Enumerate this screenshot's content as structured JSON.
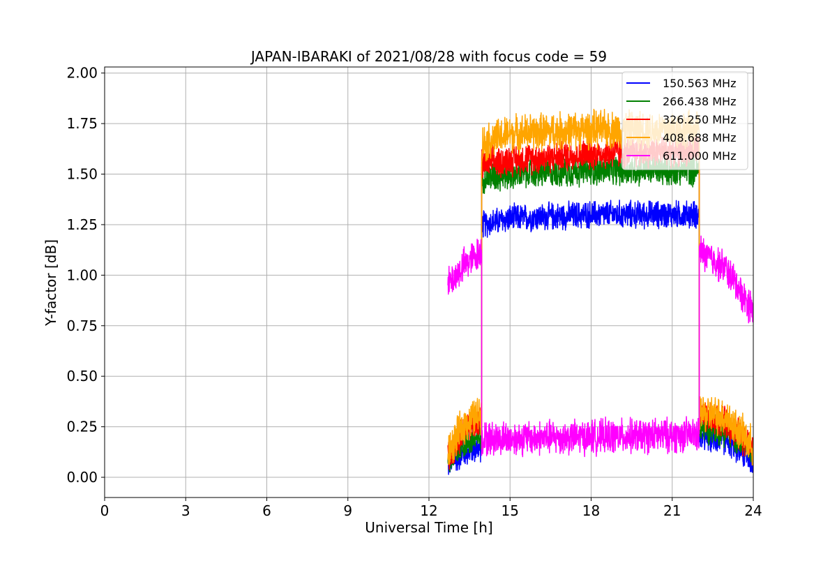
{
  "chart_data": {
    "type": "line",
    "title": "JAPAN-IBARAKI of 2021/08/28 with focus code = 59",
    "xlabel": "Universal Time [h]",
    "ylabel": "Y-factor [dB]",
    "xlim": [
      0,
      24
    ],
    "ylim": [
      -0.1,
      2.03
    ],
    "xticks": [
      0,
      3,
      6,
      9,
      12,
      15,
      18,
      21,
      24
    ],
    "xtick_labels": [
      "0",
      "3",
      "6",
      "9",
      "12",
      "15",
      "18",
      "21",
      "24"
    ],
    "yticks": [
      0.0,
      0.25,
      0.5,
      0.75,
      1.0,
      1.25,
      1.5,
      1.75,
      2.0
    ],
    "ytick_labels": [
      "0.00",
      "0.25",
      "0.50",
      "0.75",
      "1.00",
      "1.25",
      "1.50",
      "1.75",
      "2.00"
    ],
    "grid": true,
    "legend_position": "top-right",
    "series": [
      {
        "name": "150.563 MHz",
        "color": "#0000ff",
        "noise_amp": 0.08,
        "segments": [
          {
            "x": [
              12.7,
              13.3,
              13.95
            ],
            "y": [
              0.06,
              0.12,
              0.15
            ]
          },
          {
            "x": [
              13.95,
              15.0,
              18.0,
              22.0
            ],
            "y": [
              1.25,
              1.28,
              1.3,
              1.3
            ]
          },
          {
            "x": [
              22.0,
              23.0,
              24.0
            ],
            "y": [
              0.2,
              0.18,
              0.08
            ]
          }
        ]
      },
      {
        "name": "266.438 MHz",
        "color": "#008000",
        "noise_amp": 0.09,
        "segments": [
          {
            "x": [
              12.7,
              13.3,
              13.95
            ],
            "y": [
              0.08,
              0.17,
              0.2
            ]
          },
          {
            "x": [
              13.95,
              15.0,
              18.0,
              22.0
            ],
            "y": [
              1.48,
              1.5,
              1.52,
              1.52
            ]
          },
          {
            "x": [
              22.0,
              23.0,
              24.0
            ],
            "y": [
              0.25,
              0.23,
              0.12
            ]
          }
        ]
      },
      {
        "name": "326.250 MHz",
        "color": "#ff0000",
        "noise_amp": 0.09,
        "segments": [
          {
            "x": [
              12.7,
              13.3,
              13.95
            ],
            "y": [
              0.1,
              0.24,
              0.28
            ]
          },
          {
            "x": [
              13.95,
              15.0,
              18.0,
              22.0
            ],
            "y": [
              1.55,
              1.57,
              1.6,
              1.62
            ]
          },
          {
            "x": [
              22.0,
              23.0,
              24.0
            ],
            "y": [
              0.3,
              0.27,
              0.14
            ]
          }
        ]
      },
      {
        "name": "408.688 MHz",
        "color": "#ffa500",
        "noise_amp": 0.11,
        "segments": [
          {
            "x": [
              12.7,
              13.3,
              13.95
            ],
            "y": [
              0.12,
              0.26,
              0.32
            ]
          },
          {
            "x": [
              13.95,
              15.0,
              18.0,
              22.0
            ],
            "y": [
              1.65,
              1.7,
              1.72,
              1.72
            ]
          },
          {
            "x": [
              22.0,
              23.0,
              24.0
            ],
            "y": [
              0.32,
              0.3,
              0.15
            ]
          }
        ]
      },
      {
        "name": "611.000 MHz",
        "color": "#ff00ff",
        "noise_amp": 0.1,
        "segments": [
          {
            "x": [
              12.7,
              13.3,
              13.95
            ],
            "y": [
              0.95,
              1.05,
              1.12
            ]
          },
          {
            "x": [
              13.95,
              18.0,
              22.0
            ],
            "y": [
              0.19,
              0.2,
              0.21
            ]
          },
          {
            "x": [
              22.0,
              23.0,
              24.0
            ],
            "y": [
              1.12,
              1.03,
              0.82
            ]
          }
        ]
      }
    ]
  }
}
